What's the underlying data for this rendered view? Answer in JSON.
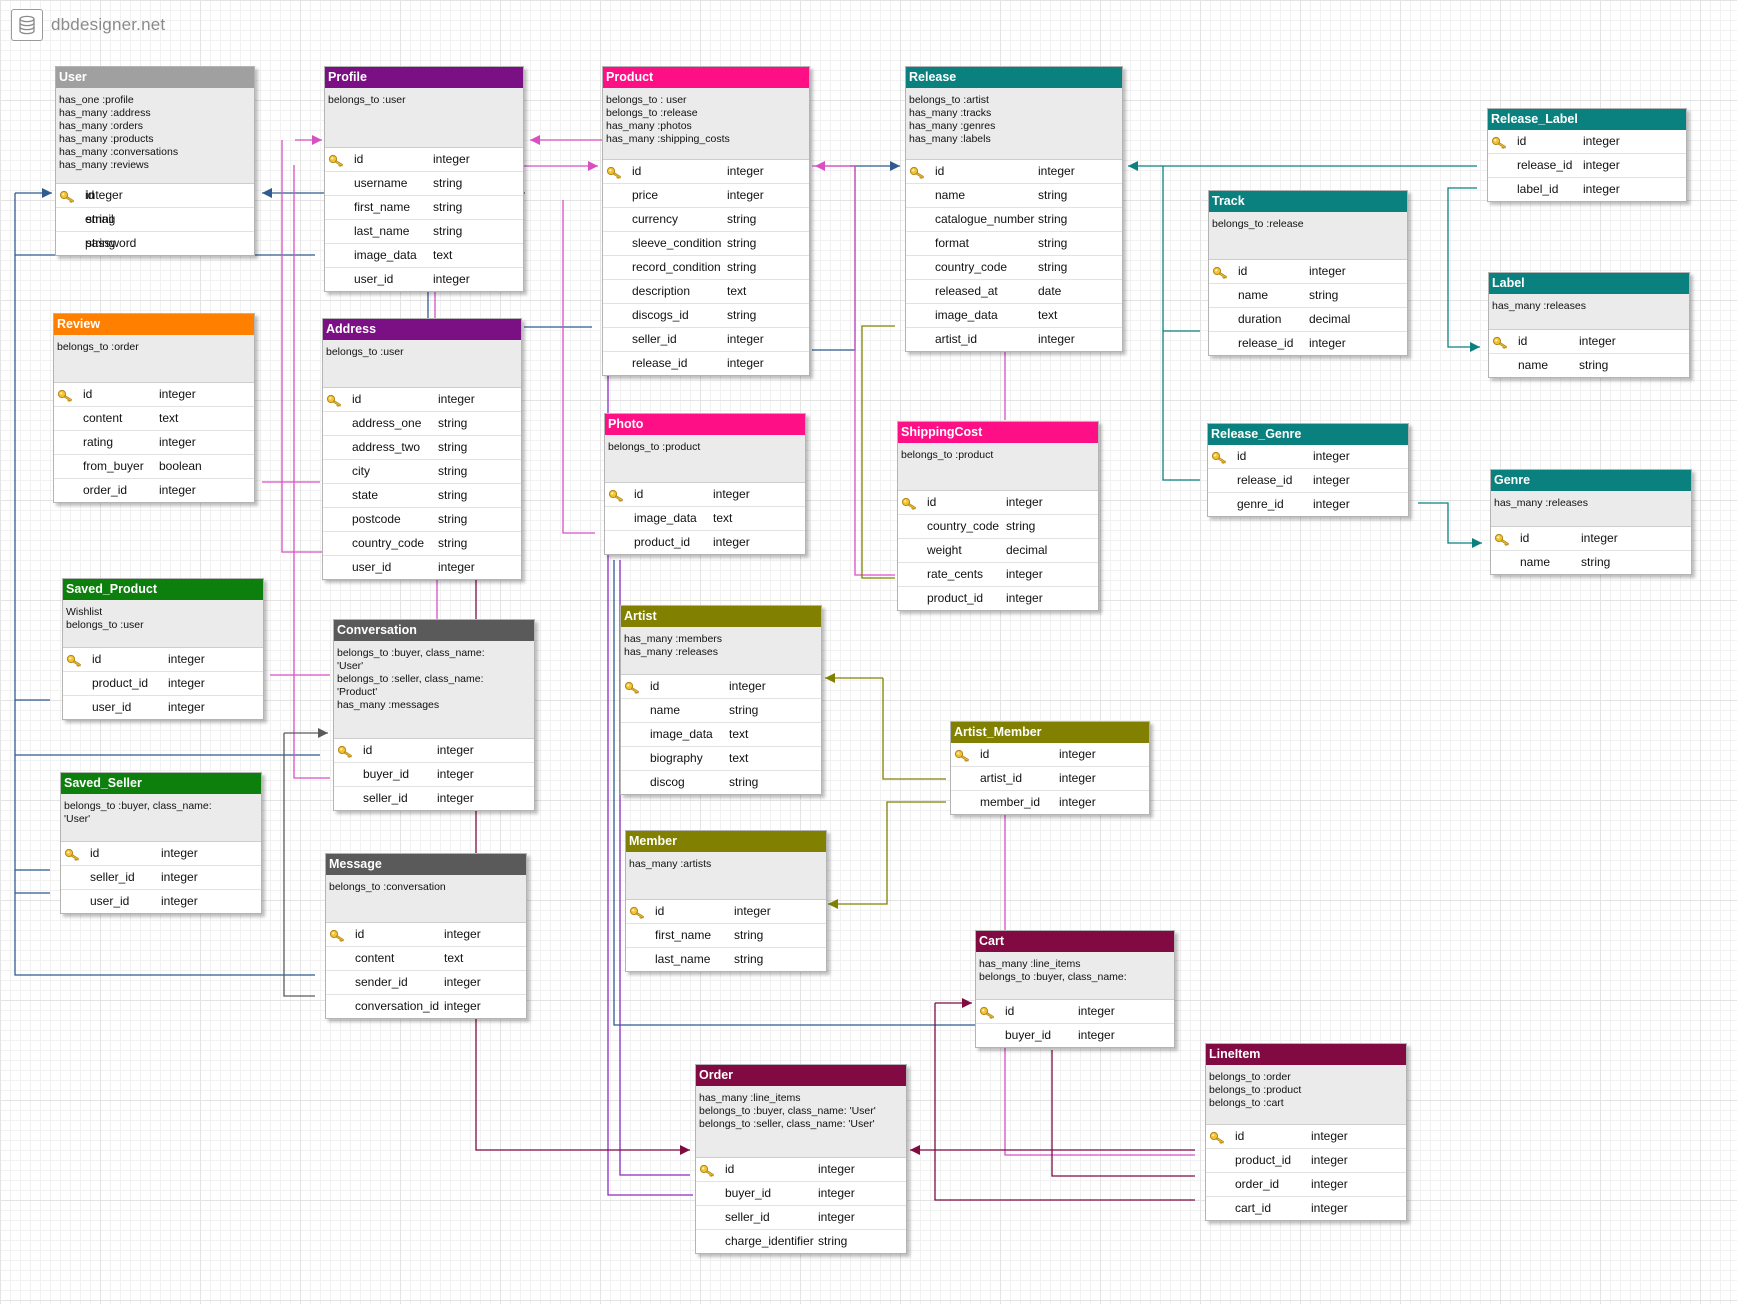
{
  "app": {
    "brand": "dbdesigner.net"
  },
  "colors": {
    "gray": "#5a5a5a",
    "user": "#a0a0a0",
    "purple": "#7b0f84",
    "magenta": "#ff0f86",
    "teal": "#0a817f",
    "orange": "#ff7f00",
    "green": "#0c7f0d",
    "olive": "#818000",
    "maroon": "#800a41",
    "blue": "#2f5b8e",
    "pink": "#d84fc4",
    "violet": "#8a2cc4"
  },
  "tables": [
    {
      "name": "User",
      "color": "user",
      "note": "has_one :profile\nhas_many :address\nhas_many :orders\nhas_many :products\nhas_many :conversations\nhas_many :reviews",
      "fields": [
        [
          "id",
          "integer"
        ],
        [
          "email",
          "string"
        ],
        [
          "password",
          "string"
        ]
      ]
    },
    {
      "name": "Profile",
      "color": "purple",
      "note": "belongs_to :user",
      "fields": [
        [
          "id",
          "integer"
        ],
        [
          "username",
          "string"
        ],
        [
          "first_name",
          "string"
        ],
        [
          "last_name",
          "string"
        ],
        [
          "image_data",
          "text"
        ],
        [
          "user_id",
          "integer"
        ]
      ]
    },
    {
      "name": "Product",
      "color": "magenta",
      "note": "belongs_to : user\nbelongs_to :release\nhas_many :photos\nhas_many :shipping_costs",
      "fields": [
        [
          "id",
          "integer"
        ],
        [
          "price",
          "integer"
        ],
        [
          "currency",
          "string"
        ],
        [
          "sleeve_condition",
          "string"
        ],
        [
          "record_condition",
          "string"
        ],
        [
          "description",
          "text"
        ],
        [
          "discogs_id",
          "string"
        ],
        [
          "seller_id",
          "integer"
        ],
        [
          "release_id",
          "integer"
        ]
      ]
    },
    {
      "name": "Release",
      "color": "teal",
      "note": "belongs_to :artist\nhas_many :tracks\nhas_many :genres\nhas_many :labels",
      "fields": [
        [
          "id",
          "integer"
        ],
        [
          "name",
          "string"
        ],
        [
          "catalogue_number",
          "string"
        ],
        [
          "format",
          "string"
        ],
        [
          "country_code",
          "string"
        ],
        [
          "released_at",
          "date"
        ],
        [
          "image_data",
          "text"
        ],
        [
          "artist_id",
          "integer"
        ]
      ]
    },
    {
      "name": "Release_Label",
      "color": "teal",
      "note": "",
      "fields": [
        [
          "id",
          "integer"
        ],
        [
          "release_id",
          "integer"
        ],
        [
          "label_id",
          "integer"
        ]
      ]
    },
    {
      "name": "Track",
      "color": "teal",
      "note": "belongs_to :release",
      "fields": [
        [
          "id",
          "integer"
        ],
        [
          "name",
          "string"
        ],
        [
          "duration",
          "decimal"
        ],
        [
          "release_id",
          "integer"
        ]
      ]
    },
    {
      "name": "Label",
      "color": "teal",
      "note": "has_many :releases",
      "fields": [
        [
          "id",
          "integer"
        ],
        [
          "name",
          "string"
        ]
      ]
    },
    {
      "name": "Review",
      "color": "orange",
      "note": "belongs_to :order",
      "fields": [
        [
          "id",
          "integer"
        ],
        [
          "content",
          "text"
        ],
        [
          "rating",
          "integer"
        ],
        [
          "from_buyer",
          "boolean"
        ],
        [
          "order_id",
          "integer"
        ]
      ]
    },
    {
      "name": "Address",
      "color": "purple",
      "note": "belongs_to :user",
      "fields": [
        [
          "id",
          "integer"
        ],
        [
          "address_one",
          "string"
        ],
        [
          "address_two",
          "string"
        ],
        [
          "city",
          "string"
        ],
        [
          "state",
          "string"
        ],
        [
          "postcode",
          "string"
        ],
        [
          "country_code",
          "string"
        ],
        [
          "user_id",
          "integer"
        ]
      ]
    },
    {
      "name": "Photo",
      "color": "magenta",
      "note": "belongs_to :product",
      "fields": [
        [
          "id",
          "integer"
        ],
        [
          "image_data",
          "text"
        ],
        [
          "product_id",
          "integer"
        ]
      ]
    },
    {
      "name": "ShippingCost",
      "color": "magenta",
      "note": "belongs_to :product",
      "fields": [
        [
          "id",
          "integer"
        ],
        [
          "country_code",
          "string"
        ],
        [
          "weight",
          "decimal"
        ],
        [
          "rate_cents",
          "integer"
        ],
        [
          "product_id",
          "integer"
        ]
      ]
    },
    {
      "name": "Release_Genre",
      "color": "teal",
      "note": "",
      "fields": [
        [
          "id",
          "integer"
        ],
        [
          "release_id",
          "integer"
        ],
        [
          "genre_id",
          "integer"
        ]
      ]
    },
    {
      "name": "Genre",
      "color": "teal",
      "note": "has_many :releases",
      "fields": [
        [
          "id",
          "integer"
        ],
        [
          "name",
          "string"
        ]
      ]
    },
    {
      "name": "Saved_Product",
      "color": "green",
      "note": "Wishlist\nbelongs_to :user",
      "fields": [
        [
          "id",
          "integer"
        ],
        [
          "product_id",
          "integer"
        ],
        [
          "user_id",
          "integer"
        ]
      ]
    },
    {
      "name": "Conversation",
      "color": "gray",
      "note": "belongs_to :buyer, class_name:\n'User'\nbelongs_to :seller, class_name:\n'Product'\nhas_many :messages",
      "fields": [
        [
          "id",
          "integer"
        ],
        [
          "buyer_id",
          "integer"
        ],
        [
          "seller_id",
          "integer"
        ]
      ]
    },
    {
      "name": "Artist",
      "color": "olive",
      "note": "has_many :members\nhas_many :releases",
      "fields": [
        [
          "id",
          "integer"
        ],
        [
          "name",
          "string"
        ],
        [
          "image_data",
          "text"
        ],
        [
          "biography",
          "text"
        ],
        [
          "discog",
          "string"
        ]
      ]
    },
    {
      "name": "Artist_Member",
      "color": "olive",
      "note": "",
      "fields": [
        [
          "id",
          "integer"
        ],
        [
          "artist_id",
          "integer"
        ],
        [
          "member_id",
          "integer"
        ]
      ]
    },
    {
      "name": "Saved_Seller",
      "color": "green",
      "note": "belongs_to :buyer, class_name:\n'User'",
      "fields": [
        [
          "id",
          "integer"
        ],
        [
          "seller_id",
          "integer"
        ],
        [
          "user_id",
          "integer"
        ]
      ]
    },
    {
      "name": "Message",
      "color": "gray",
      "note": "belongs_to :conversation",
      "fields": [
        [
          "id",
          "integer"
        ],
        [
          "content",
          "text"
        ],
        [
          "sender_id",
          "integer"
        ],
        [
          "conversation_id",
          "integer"
        ]
      ]
    },
    {
      "name": "Member",
      "color": "olive",
      "note": "has_many :artists",
      "fields": [
        [
          "id",
          "integer"
        ],
        [
          "first_name",
          "string"
        ],
        [
          "last_name",
          "string"
        ]
      ]
    },
    {
      "name": "Cart",
      "color": "maroon",
      "note": "has_many :line_items\nbelongs_to :buyer, class_name:",
      "fields": [
        [
          "id",
          "integer"
        ],
        [
          "buyer_id",
          "integer"
        ]
      ]
    },
    {
      "name": "LineItem",
      "color": "maroon",
      "note": "belongs_to :order\nbelongs_to :product\nbelongs_to :cart",
      "fields": [
        [
          "id",
          "integer"
        ],
        [
          "product_id",
          "integer"
        ],
        [
          "order_id",
          "integer"
        ],
        [
          "cart_id",
          "integer"
        ]
      ]
    },
    {
      "name": "Order",
      "color": "maroon",
      "note": "has_many :line_items\nbelongs_to :buyer, class_name: 'User'\nbelongs_to :seller, class_name: 'User'",
      "fields": [
        [
          "id",
          "integer"
        ],
        [
          "buyer_id",
          "integer"
        ],
        [
          "seller_id",
          "integer"
        ],
        [
          "charge_identifier",
          "string"
        ]
      ]
    }
  ]
}
